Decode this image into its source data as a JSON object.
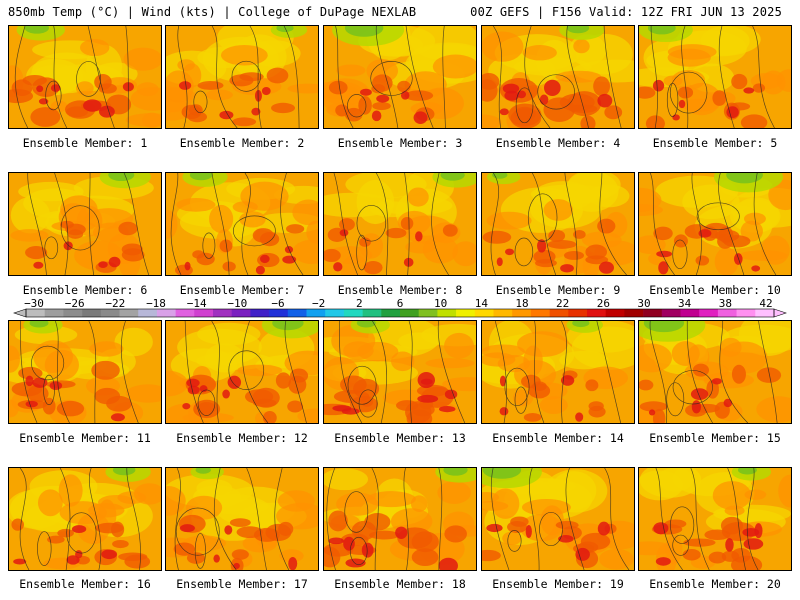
{
  "header": {
    "left": "850mb Temp (°C) | Wind (kts) | College of DuPage NEXLAB",
    "right": "00Z GEFS | F156 Valid: 12Z FRI JUN 13 2025"
  },
  "panels": [
    {
      "label": "Ensemble Member: 1",
      "heat": 0.65,
      "cool": 0.35
    },
    {
      "label": "Ensemble Member: 2",
      "heat": 0.45,
      "cool": 0.15
    },
    {
      "label": "Ensemble Member: 3",
      "heat": 0.55,
      "cool": 0.75
    },
    {
      "label": "Ensemble Member: 4",
      "heat": 0.9,
      "cool": 0.3
    },
    {
      "label": "Ensemble Member: 5",
      "heat": 0.5,
      "cool": 0.45
    },
    {
      "label": "Ensemble Member: 6",
      "heat": 0.35,
      "cool": 0.4
    },
    {
      "label": "Ensemble Member: 7",
      "heat": 0.45,
      "cool": 0.3
    },
    {
      "label": "Ensemble Member: 8",
      "heat": 0.4,
      "cool": 0.35
    },
    {
      "label": "Ensemble Member: 9",
      "heat": 0.55,
      "cool": 0.1
    },
    {
      "label": "Ensemble Member: 10",
      "heat": 0.55,
      "cool": 0.7
    },
    {
      "label": "Ensemble Member: 11",
      "heat": 0.6,
      "cool": 0.2
    },
    {
      "label": "Ensemble Member: 12",
      "heat": 0.65,
      "cool": 0.55
    },
    {
      "label": "Ensemble Member: 13",
      "heat": 0.85,
      "cool": 0.2
    },
    {
      "label": "Ensemble Member: 14",
      "heat": 0.4,
      "cool": 0.15
    },
    {
      "label": "Ensemble Member: 15",
      "heat": 0.6,
      "cool": 0.8
    },
    {
      "label": "Ensemble Member: 16",
      "heat": 0.55,
      "cool": 0.3
    },
    {
      "label": "Ensemble Member: 17",
      "heat": 0.55,
      "cool": 0.1
    },
    {
      "label": "Ensemble Member: 18",
      "heat": 0.75,
      "cool": 0.35
    },
    {
      "label": "Ensemble Member: 19",
      "heat": 0.6,
      "cool": 0.75
    },
    {
      "label": "Ensemble Member: 20",
      "heat": 0.7,
      "cool": 0.2
    }
  ],
  "colorbar": {
    "ticks": [
      "−30",
      "−26",
      "−22",
      "−18",
      "−14",
      "−10",
      "−6",
      "−2",
      "2",
      "6",
      "10",
      "14",
      "18",
      "22",
      "26",
      "30",
      "34",
      "38",
      "42"
    ],
    "colors": [
      "#bdbdbd",
      "#9e9e9e",
      "#8c8c8c",
      "#7a7a7a",
      "#8a8a8a",
      "#a3a3a3",
      "#b7b7d8",
      "#d9a0e8",
      "#e060e0",
      "#d040d0",
      "#a030c0",
      "#7a20c0",
      "#4020c8",
      "#2030d8",
      "#1060e8",
      "#10a0f0",
      "#20c8e8",
      "#20d8c0",
      "#20c080",
      "#20a040",
      "#40a020",
      "#80c020",
      "#c0e000",
      "#f0f000",
      "#ffd800",
      "#ffb800",
      "#ff9800",
      "#ff7800",
      "#f05000",
      "#e83000",
      "#e01010",
      "#c00000",
      "#a00000",
      "#900020",
      "#a00060",
      "#c00090",
      "#e020c0",
      "#f060e0",
      "#ff90f0",
      "#ffc0ff"
    ]
  }
}
